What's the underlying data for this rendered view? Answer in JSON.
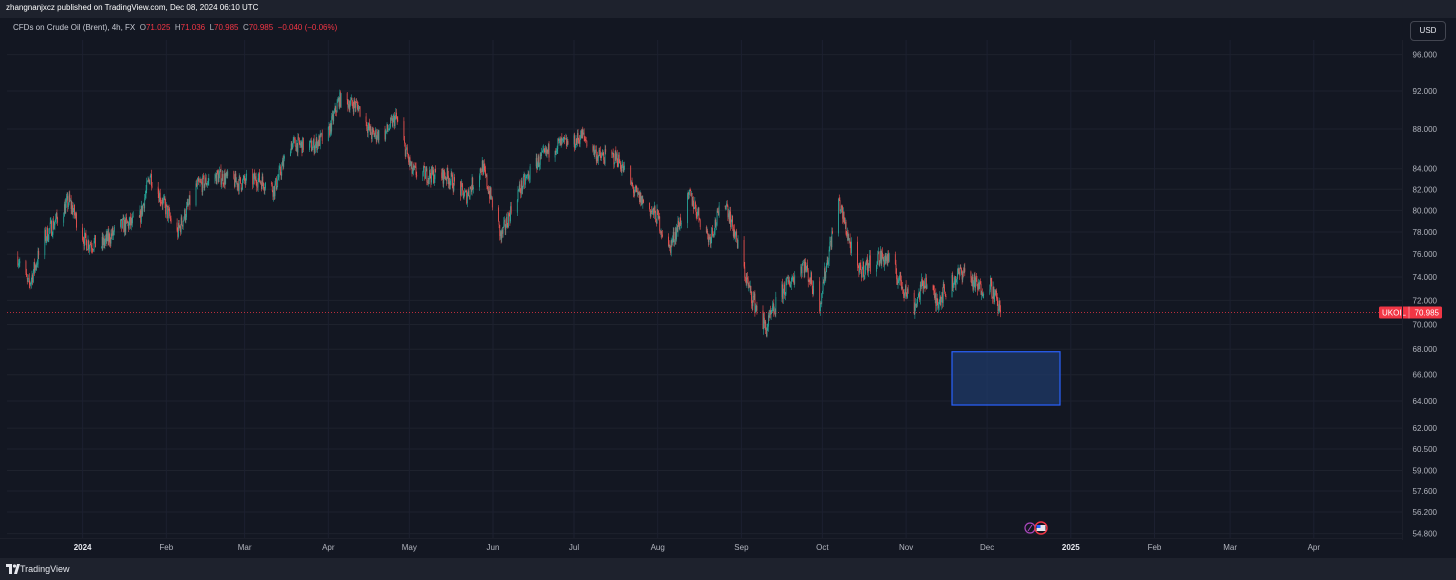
{
  "header": {
    "publish_line": "zhangnanjxcz published on TradingView.com, Dec 08, 2024 06:10 UTC"
  },
  "legend": {
    "symbol": "CFDs on Crude Oil (Brent), 4h, FX",
    "o_label": "O",
    "o_value": "71.025",
    "h_label": "H",
    "h_value": "71.036",
    "l_label": "L",
    "l_value": "70.985",
    "c_label": "C",
    "c_value": "70.985",
    "change": "−0.040 (−0.06%)"
  },
  "currency_button": "USD",
  "price_badge": {
    "symbol": "UKOIL",
    "value": "70.985"
  },
  "footer": {
    "brand": "TradingView"
  },
  "colors": {
    "up": "#26a69a",
    "down": "#ef5350",
    "badge": "#f23645",
    "zone_fill": "#1f3a68",
    "zone_border": "#2962ff"
  },
  "chart_data": {
    "type": "candlestick",
    "timeframe": "4h",
    "price_scale": "log",
    "grid": true,
    "y_ticks": [
      "96.000",
      "92.000",
      "88.000",
      "84.000",
      "82.000",
      "80.000",
      "78.000",
      "76.000",
      "74.000",
      "72.000",
      "70.000",
      "68.000",
      "66.000",
      "64.000",
      "62.000",
      "60.500",
      "59.000",
      "57.600",
      "56.200",
      "54.800"
    ],
    "x_ticks": [
      "2024",
      "Feb",
      "Mar",
      "Apr",
      "May",
      "Jun",
      "Jul",
      "Aug",
      "Sep",
      "Oct",
      "Nov",
      "Dec",
      "2025",
      "Feb",
      "Mar",
      "Apr"
    ],
    "last_price": 70.985,
    "close_path": [
      [
        "2023-12-08",
        75.8
      ],
      [
        "2023-12-12",
        73.2
      ],
      [
        "2023-12-18",
        77.5
      ],
      [
        "2023-12-27",
        80.9
      ],
      [
        "2024-01-02",
        77.1
      ],
      [
        "2024-01-08",
        76.8
      ],
      [
        "2024-01-15",
        78.5
      ],
      [
        "2024-01-22",
        79.0
      ],
      [
        "2024-01-26",
        83.4
      ],
      [
        "2024-02-05",
        77.8
      ],
      [
        "2024-02-12",
        82.2
      ],
      [
        "2024-02-20",
        83.3
      ],
      [
        "2024-02-28",
        82.6
      ],
      [
        "2024-03-06",
        83.0
      ],
      [
        "2024-03-12",
        82.0
      ],
      [
        "2024-03-18",
        86.5
      ],
      [
        "2024-03-26",
        86.2
      ],
      [
        "2024-04-01",
        87.5
      ],
      [
        "2024-04-05",
        91.1
      ],
      [
        "2024-04-12",
        90.4
      ],
      [
        "2024-04-17",
        87.4
      ],
      [
        "2024-04-22",
        87.5
      ],
      [
        "2024-04-26",
        89.2
      ],
      [
        "2024-05-02",
        83.7
      ],
      [
        "2024-05-08",
        83.4
      ],
      [
        "2024-05-15",
        83.3
      ],
      [
        "2024-05-22",
        81.3
      ],
      [
        "2024-05-28",
        84.3
      ],
      [
        "2024-06-04",
        77.5
      ],
      [
        "2024-06-10",
        81.6
      ],
      [
        "2024-06-17",
        84.5
      ],
      [
        "2024-06-24",
        86.4
      ],
      [
        "2024-07-01",
        86.6
      ],
      [
        "2024-07-04",
        87.4
      ],
      [
        "2024-07-10",
        85.2
      ],
      [
        "2024-07-17",
        85.1
      ],
      [
        "2024-07-24",
        81.5
      ],
      [
        "2024-08-01",
        79.3
      ],
      [
        "2024-08-05",
        76.3
      ],
      [
        "2024-08-13",
        81.4
      ],
      [
        "2024-08-20",
        77.4
      ],
      [
        "2024-08-26",
        81.0
      ],
      [
        "2024-09-04",
        72.8
      ],
      [
        "2024-09-10",
        69.6
      ],
      [
        "2024-09-16",
        72.7
      ],
      [
        "2024-09-24",
        75.2
      ],
      [
        "2024-09-30",
        71.8
      ],
      [
        "2024-10-07",
        80.9
      ],
      [
        "2024-10-14",
        74.3
      ],
      [
        "2024-10-21",
        75.7
      ],
      [
        "2024-10-25",
        75.6
      ],
      [
        "2024-11-04",
        71.5
      ],
      [
        "2024-11-08",
        73.8
      ],
      [
        "2024-11-12",
        71.9
      ],
      [
        "2024-11-18",
        73.5
      ],
      [
        "2024-11-22",
        74.6
      ],
      [
        "2024-11-28",
        73.0
      ],
      [
        "2024-12-02",
        73.5
      ],
      [
        "2024-12-06",
        70.985
      ]
    ],
    "zone": {
      "type": "rectangle",
      "price_top": 67.8,
      "price_bottom": 63.7,
      "time_start": "2024-11-18",
      "time_end": "2024-12-28"
    }
  }
}
